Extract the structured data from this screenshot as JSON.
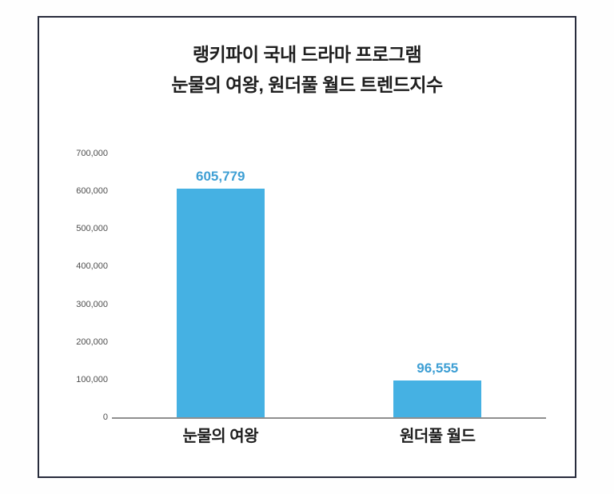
{
  "chart": {
    "title_line1": "랭키파이 국내 드라마 프로그램",
    "title_line2": "눈물의 여왕, 원더풀 월드 트렌드지수"
  },
  "chart_data": {
    "type": "bar",
    "title": "랭키파이 국내 드라마 프로그램 눈물의 여왕, 원더풀 월드 트렌드지수",
    "categories": [
      "눈물의 여왕",
      "원더풀 월드"
    ],
    "values": [
      605779,
      96555
    ],
    "value_labels": [
      "605,779",
      "96,555"
    ],
    "xlabel": "",
    "ylabel": "",
    "ylim": [
      0,
      700000
    ],
    "ytick_step": 100000,
    "yticks": [
      "700,000",
      "600,000",
      "500,000",
      "400,000",
      "300,000",
      "200,000",
      "100,000",
      "0"
    ],
    "grid": false,
    "legend": false,
    "bar_color": "#45b1e3",
    "value_label_color": "#3e9fd4",
    "frame_border_color": "#282c3c",
    "axis_line_color": "#8f8f8f"
  }
}
